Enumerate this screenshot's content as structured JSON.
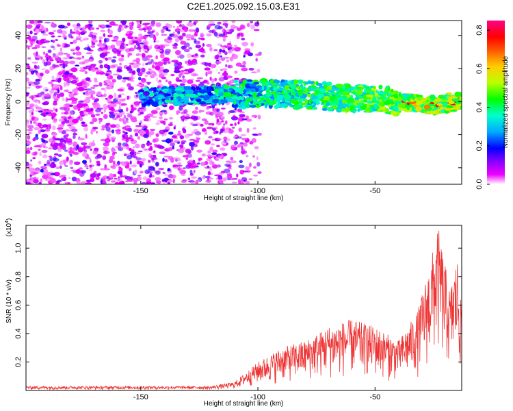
{
  "chart_data": [
    {
      "type": "heatmap",
      "title": "C2E1.2025.092.15.03.E31",
      "xlabel": "Height of straight line (km)",
      "ylabel": "Frequency (Hz)",
      "xlim": [
        -199,
        -13
      ],
      "ylim": [
        -50,
        49
      ],
      "xticks": [
        -150,
        -100,
        -50
      ],
      "yticks": [
        -40,
        -20,
        0,
        20,
        40
      ],
      "colorbar": {
        "label": "Normalized spectral amplitude",
        "range": [
          0.0,
          0.85
        ],
        "ticks": [
          "0.0",
          "0.2",
          "0.4",
          "0.6",
          "0.8"
        ],
        "colors": [
          "#ffffff",
          "#ee00ff",
          "#8800ff",
          "#0000ff",
          "#00aaff",
          "#00ffcc",
          "#00ff00",
          "#bbff00",
          "#ffcc00",
          "#ff5500",
          "#ff0000",
          "#ff0088"
        ]
      },
      "ridge": {
        "description_free": true,
        "points": [
          {
            "x": -145,
            "f": 3
          },
          {
            "x": -120,
            "f": 4
          },
          {
            "x": -100,
            "f": 5
          },
          {
            "x": -80,
            "f": 4
          },
          {
            "x": -60,
            "f": 2
          },
          {
            "x": -40,
            "f": 0
          },
          {
            "x": -25,
            "f": -2
          },
          {
            "x": -13,
            "f": 0
          }
        ],
        "peak_amplitude": 0.85,
        "peak_x": -25
      }
    },
    {
      "type": "line",
      "xlabel": "Height of straight line (km)",
      "ylabel": "SNR (10 * v/v)",
      "multiplier": "(x10",
      "multiplier_exp": "4",
      "xlim": [
        -199,
        -13
      ],
      "ylim": [
        0,
        1.16
      ],
      "xticks": [
        -150,
        -100,
        -50
      ],
      "yticks": [
        "0.2",
        "0.4",
        "0.6",
        "0.8",
        "1.0"
      ],
      "color": "#ee3333",
      "envelope": [
        {
          "x": -199,
          "y": 0.03
        },
        {
          "x": -120,
          "y": 0.03
        },
        {
          "x": -110,
          "y": 0.06
        },
        {
          "x": -100,
          "y": 0.2
        },
        {
          "x": -90,
          "y": 0.3
        },
        {
          "x": -80,
          "y": 0.35
        },
        {
          "x": -70,
          "y": 0.45
        },
        {
          "x": -60,
          "y": 0.5
        },
        {
          "x": -50,
          "y": 0.45
        },
        {
          "x": -40,
          "y": 0.35
        },
        {
          "x": -32,
          "y": 0.55
        },
        {
          "x": -28,
          "y": 0.8
        },
        {
          "x": -23,
          "y": 1.15
        },
        {
          "x": -18,
          "y": 0.7
        },
        {
          "x": -15,
          "y": 0.95
        },
        {
          "x": -13,
          "y": 0.55
        }
      ]
    }
  ]
}
